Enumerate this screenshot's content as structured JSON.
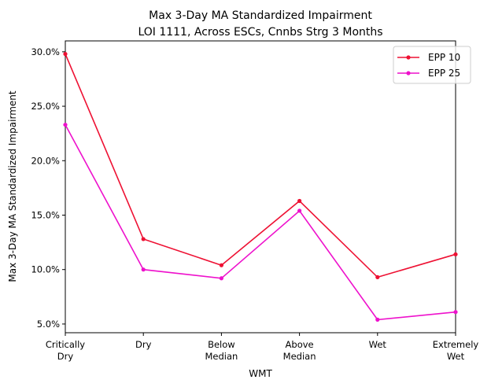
{
  "chart_data": {
    "type": "line",
    "title": [
      "Max 3-Day MA Standardized Impairment",
      "LOI 1111, Across ESCs, Cnnbs Strg 3 Months"
    ],
    "xlabel": "WMT",
    "ylabel": "Max 3-Day MA Standardized Impairment",
    "categories": [
      [
        "Critically",
        "Dry"
      ],
      [
        "Dry"
      ],
      [
        "Below",
        "Median"
      ],
      [
        "Above",
        "Median"
      ],
      [
        "Wet"
      ],
      [
        "Extremely",
        "Wet"
      ]
    ],
    "ylim": [
      4.2,
      31.0
    ],
    "yticks": [
      5.0,
      10.0,
      15.0,
      20.0,
      25.0,
      30.0
    ],
    "ytick_labels": [
      "5.0%",
      "10.0%",
      "15.0%",
      "20.0%",
      "25.0%",
      "30.0%"
    ],
    "grid": false,
    "legend_position": "top-right",
    "series": [
      {
        "name": "EPP 10",
        "color": "#ee1133",
        "values": [
          29.8,
          12.8,
          10.4,
          16.3,
          9.3,
          11.4
        ]
      },
      {
        "name": "EPP 25",
        "color": "#ee11cc",
        "values": [
          23.3,
          10.0,
          9.2,
          15.4,
          5.4,
          6.1
        ]
      }
    ]
  }
}
